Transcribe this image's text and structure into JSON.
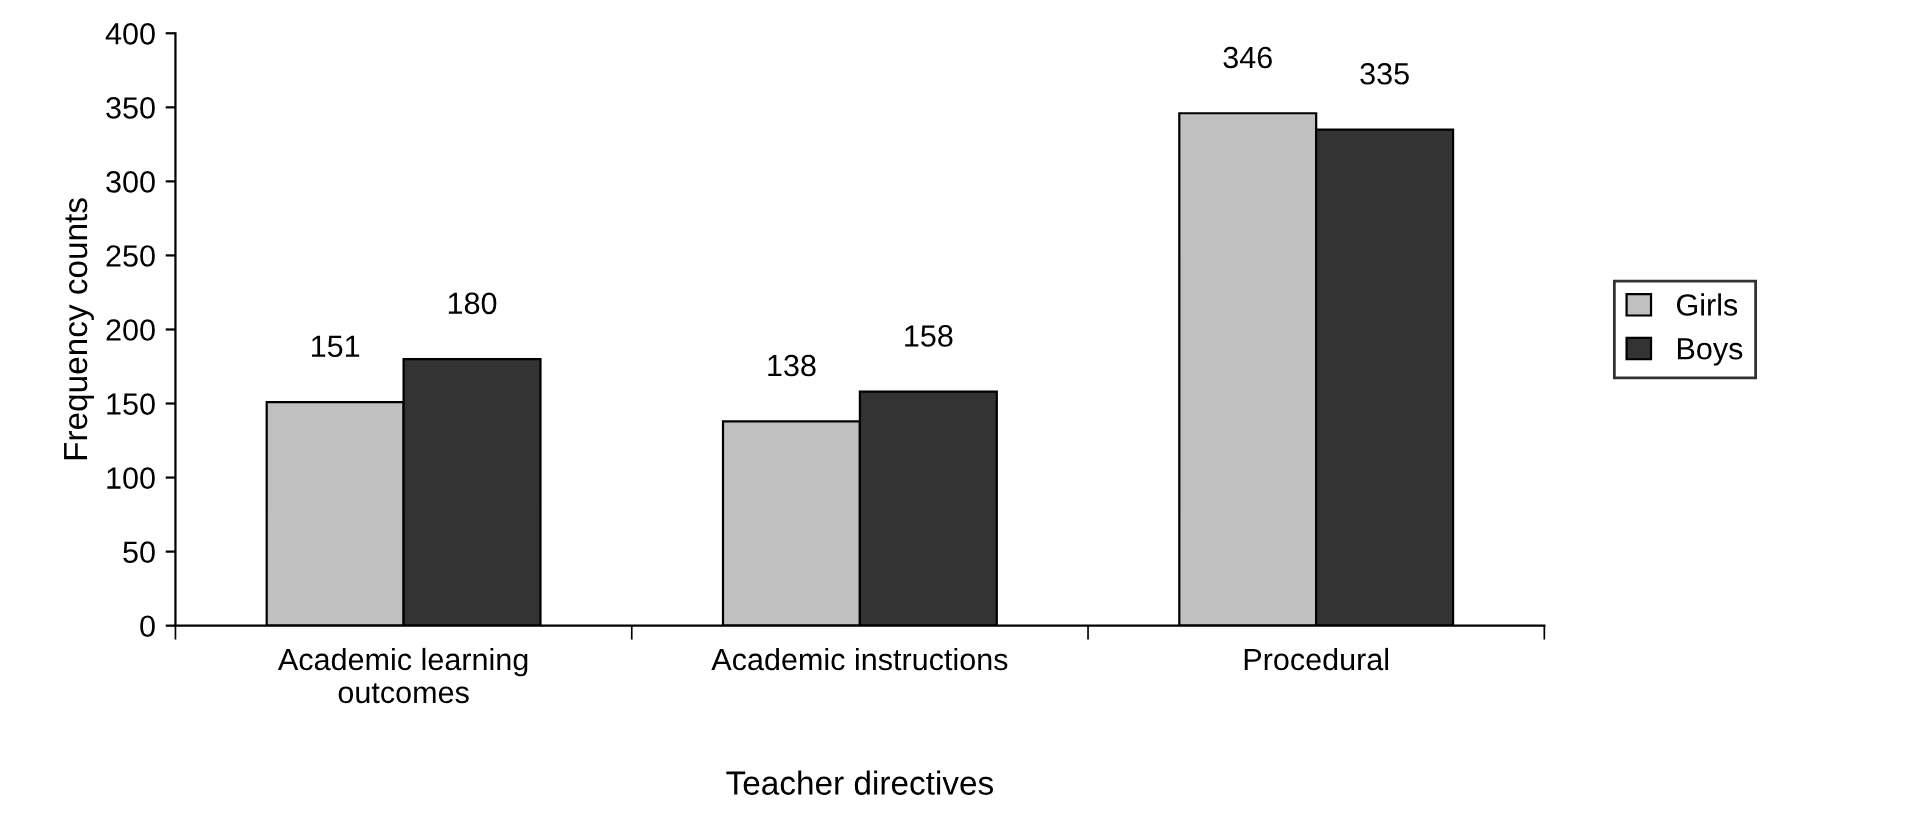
{
  "chart_data": {
    "type": "bar",
    "xlabel": "Teacher directives",
    "ylabel": "Frequency counts",
    "categories": [
      "Academic learning outcomes",
      "Academic instructions",
      "Procedural"
    ],
    "series": [
      {
        "name": "Girls",
        "color": "#c0c0c0",
        "values": [
          151,
          138,
          346
        ]
      },
      {
        "name": "Boys",
        "color": "#333333",
        "values": [
          180,
          158,
          335
        ]
      }
    ],
    "ylim": [
      0,
      400
    ],
    "yticks": [
      0,
      50,
      100,
      150,
      200,
      250,
      300,
      350,
      400
    ],
    "data_labels": true,
    "legend": "right",
    "grid": false
  }
}
